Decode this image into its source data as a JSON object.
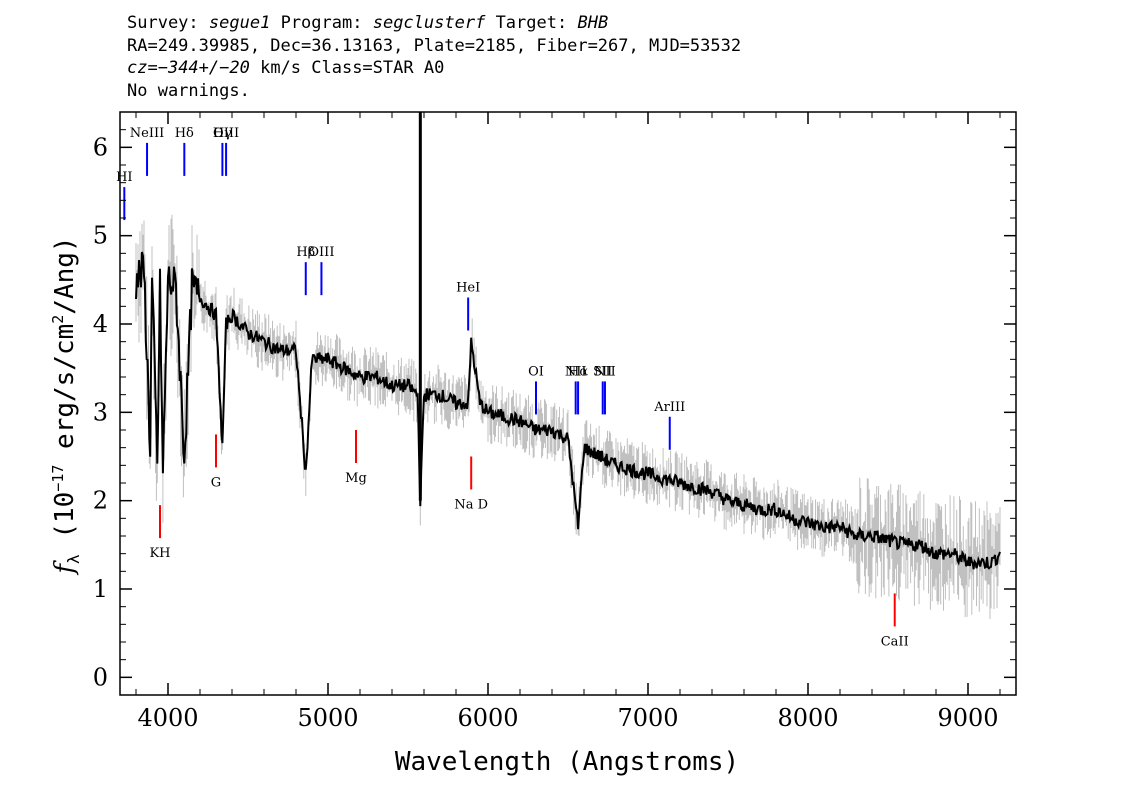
{
  "header": {
    "survey_label": "Survey:",
    "survey_value": "segue1",
    "program_label": "Program:",
    "program_value": "segclusterf",
    "target_label": "Target:",
    "target_value": "BHB",
    "line2": "RA=249.39985, Dec=36.13163, Plate=2185, Fiber=267, MJD=53532",
    "cz_prefix": "cz=",
    "cz_value": "−344+/−20",
    "cz_suffix": " km/s Class=STAR A0",
    "line4": "No warnings."
  },
  "chart_data": {
    "type": "line",
    "xlabel": "Wavelength (Angstroms)",
    "ylabel_symbol": "f",
    "ylabel_subscript": "λ",
    "ylabel_prefix": "(10",
    "ylabel_exp": "−17",
    "ylabel_mid": " erg/s/cm",
    "ylabel_exp2": "2",
    "ylabel_suffix": "/Ang)",
    "xlim": [
      3700,
      9300
    ],
    "ylim": [
      -0.2,
      6.4
    ],
    "x_ticks": [
      4000,
      5000,
      6000,
      7000,
      8000,
      9000
    ],
    "x_tick_labels": [
      "4000",
      "5000",
      "6000",
      "7000",
      "8000",
      "9000"
    ],
    "y_ticks": [
      0,
      1,
      2,
      3,
      4,
      5,
      6
    ],
    "y_tick_labels": [
      "0",
      "1",
      "2",
      "3",
      "4",
      "5",
      "6"
    ],
    "series": [
      {
        "color": "#000000",
        "x": [
          3800,
          3850,
          3889,
          3900,
          3933,
          3950,
          3968,
          4000,
          4050,
          4102,
          4150,
          4200,
          4250,
          4300,
          4340,
          4363,
          4400,
          4450,
          4500,
          4600,
          4700,
          4800,
          4861,
          4900,
          5000,
          5100,
          5200,
          5300,
          5400,
          5500,
          5560,
          5577,
          5600,
          5700,
          5800,
          5876,
          5895,
          5950,
          6000,
          6100,
          6200,
          6300,
          6400,
          6500,
          6563,
          6600,
          6700,
          6800,
          6900,
          7000,
          7100,
          7200,
          7300,
          7400,
          7500,
          7600,
          7700,
          7800,
          7900,
          8000,
          8100,
          8200,
          8300,
          8400,
          8500,
          8600,
          8700,
          8800,
          8900,
          9000,
          9100,
          9150,
          9200
        ],
        "y": [
          4.5,
          4.6,
          2.6,
          4.5,
          2.4,
          4.4,
          2.3,
          4.5,
          4.4,
          2.5,
          4.4,
          4.3,
          4.2,
          4.1,
          2.6,
          4.0,
          4.1,
          4.0,
          3.9,
          3.8,
          3.7,
          3.7,
          2.3,
          3.6,
          3.6,
          3.5,
          3.4,
          3.4,
          3.3,
          3.3,
          3.2,
          2.0,
          3.2,
          3.2,
          3.1,
          3.1,
          3.8,
          3.1,
          3.0,
          2.95,
          2.9,
          2.8,
          2.8,
          2.7,
          1.7,
          2.6,
          2.5,
          2.4,
          2.35,
          2.3,
          2.25,
          2.2,
          2.15,
          2.1,
          2.0,
          1.95,
          1.9,
          1.9,
          1.8,
          1.75,
          1.7,
          1.7,
          1.6,
          1.6,
          1.55,
          1.5,
          1.5,
          1.4,
          1.4,
          1.3,
          1.3,
          1.3,
          1.4
        ]
      }
    ],
    "emission_lines": [
      {
        "label": "NeIII",
        "wave": 3869
      },
      {
        "label": "Hδ",
        "wave": 4102
      },
      {
        "label": "Hγ",
        "wave": 4340
      },
      {
        "label": "OIII",
        "wave": 4363
      },
      {
        "label": "Hβ",
        "wave": 4861
      },
      {
        "label": "OIII",
        "wave": 4959
      },
      {
        "label": "HeI",
        "wave": 5876
      },
      {
        "label": "OI",
        "wave": 6300
      },
      {
        "label": "NII",
        "wave": 6548
      },
      {
        "label": "Hα",
        "wave": 6563
      },
      {
        "label": "SII",
        "wave": 6717
      },
      {
        "label": "NII",
        "wave": 6731
      },
      {
        "label": "ArIII",
        "wave": 7136
      },
      {
        "label": "HI",
        "wave": 3727
      }
    ],
    "absorption_lines": [
      {
        "label": "KH",
        "wave": 3950
      },
      {
        "label": "G",
        "wave": 4300
      },
      {
        "label": "Mg",
        "wave": 5175
      },
      {
        "label": "Na D",
        "wave": 5895
      },
      {
        "label": "CaII",
        "wave": 8542
      }
    ]
  }
}
